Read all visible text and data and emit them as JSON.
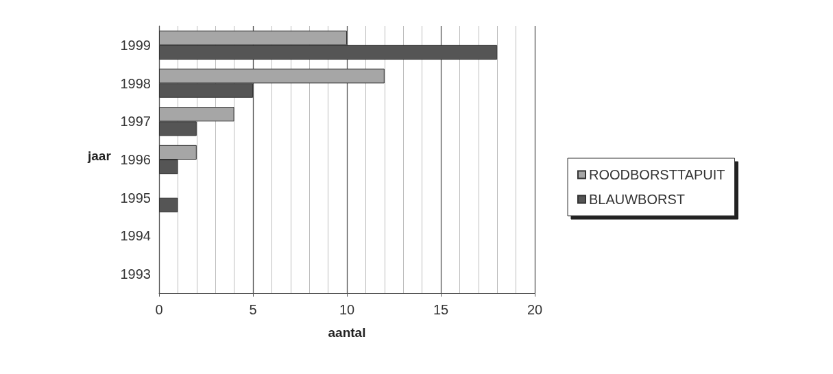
{
  "chart_data": {
    "type": "bar",
    "orientation": "horizontal",
    "xlabel": "aantal",
    "ylabel": "jaar",
    "categories": [
      "1999",
      "1998",
      "1997",
      "1996",
      "1995",
      "1994",
      "1993"
    ],
    "series": [
      {
        "name": "ROODBORSTTAPUIT",
        "color": "#a6a6a6",
        "values": [
          10,
          12,
          4,
          2,
          null,
          null,
          null
        ]
      },
      {
        "name": "BLAUWBORST",
        "color": "#555555",
        "values": [
          18,
          5,
          2,
          1,
          1,
          null,
          null
        ]
      }
    ],
    "xlim": [
      0,
      20
    ],
    "xticks": [
      0,
      5,
      10,
      15,
      20
    ],
    "grid": "x",
    "legend": "right"
  }
}
